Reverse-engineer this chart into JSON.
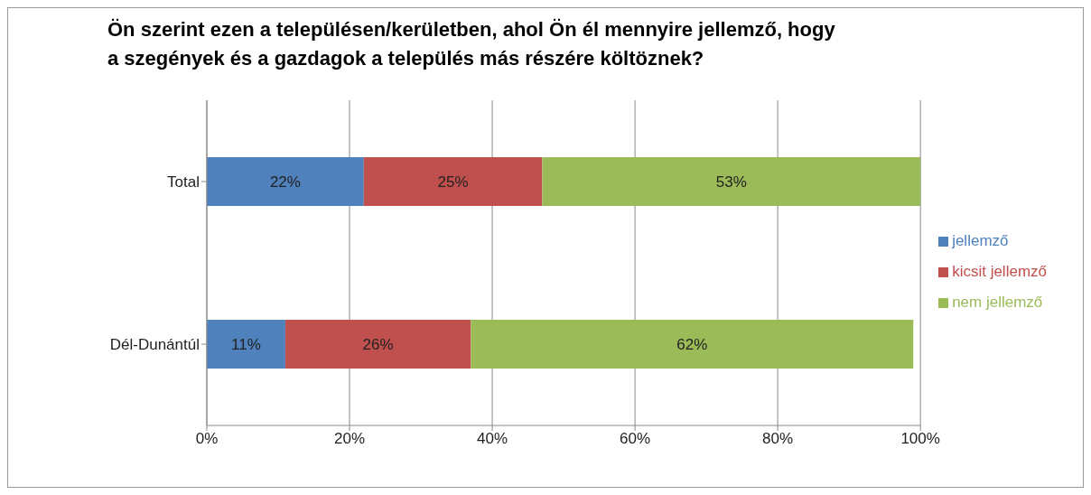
{
  "chart_data": {
    "type": "bar",
    "orientation": "horizontal",
    "stacked": true,
    "title": "Ön szerint ezen a településen/kerületben, ahol Ön él mennyire jellemző, hogy a szegények és a gazdagok a település más részére költöznek?",
    "categories": [
      "Total",
      "Dél-Dunántúl"
    ],
    "series": [
      {
        "name": "jellemző",
        "color": "#4f81bd",
        "values": [
          22,
          11
        ],
        "value_labels": [
          "22%",
          "11%"
        ]
      },
      {
        "name": "kicsit jellemző",
        "color": "#c0504d",
        "values": [
          25,
          26
        ],
        "value_labels": [
          "25%",
          "26%"
        ]
      },
      {
        "name": "nem jellemző",
        "color": "#9bbb59",
        "values": [
          53,
          62
        ],
        "value_labels": [
          "53%",
          "62%"
        ]
      }
    ],
    "xlim": [
      0,
      100
    ],
    "xticks": [
      {
        "value": 0,
        "label": "0%"
      },
      {
        "value": 20,
        "label": "20%"
      },
      {
        "value": 40,
        "label": "40%"
      },
      {
        "value": 60,
        "label": "60%"
      },
      {
        "value": 80,
        "label": "80%"
      },
      {
        "value": 100,
        "label": "100%"
      }
    ],
    "grid": "x",
    "legend": "right"
  }
}
